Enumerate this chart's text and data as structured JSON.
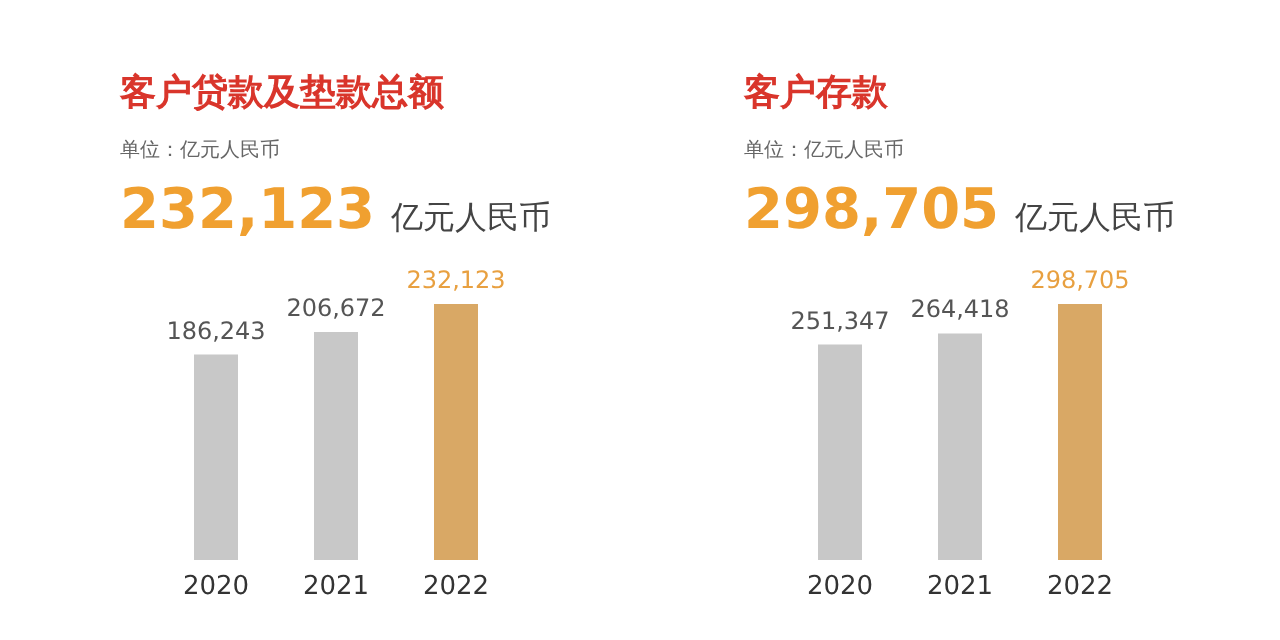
{
  "chart_data": [
    {
      "type": "bar",
      "title": "客户贷款及垫款总额",
      "annotations": [
        "单位：亿元人民币",
        "232,123",
        "亿元人民币"
      ],
      "categories": [
        "2020",
        "2021",
        "2022"
      ],
      "values": [
        186243,
        206672,
        232123
      ],
      "value_labels": [
        "186,243",
        "206,672",
        "232,123"
      ],
      "colors": [
        "#c8c8c8",
        "#c8c8c8",
        "#d9a865"
      ]
    },
    {
      "type": "bar",
      "title": "客户存款",
      "annotations": [
        "单位：亿元人民币",
        "298,705",
        "亿元人民币"
      ],
      "categories": [
        "2020",
        "2021",
        "2022"
      ],
      "values": [
        251347,
        264418,
        298705
      ],
      "value_labels": [
        "251,347",
        "264,418",
        "298,705"
      ],
      "colors": [
        "#c8c8c8",
        "#c8c8c8",
        "#d9a865"
      ]
    }
  ]
}
